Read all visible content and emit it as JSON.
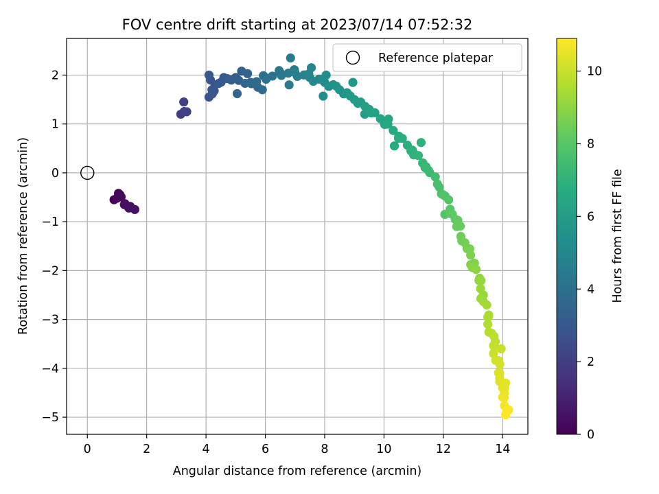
{
  "chart_data": {
    "type": "scatter",
    "title": "FOV centre drift starting at 2023/07/14 07:52:32",
    "xlabel": "Angular distance from reference (arcmin)",
    "ylabel": "Rotation from reference (arcmin)",
    "xlim": [
      -0.7,
      14.85
    ],
    "ylim": [
      -5.35,
      2.75
    ],
    "xticks": [
      0,
      2,
      4,
      6,
      8,
      10,
      12,
      14
    ],
    "yticks": [
      -5,
      -4,
      -3,
      -2,
      -1,
      0,
      1,
      2
    ],
    "xtick_labels": [
      "0",
      "2",
      "4",
      "6",
      "8",
      "10",
      "12",
      "14"
    ],
    "ytick_labels": [
      "−5",
      "−4",
      "−3",
      "−2",
      "−1",
      "0",
      "1",
      "2"
    ],
    "grid": true,
    "legend": {
      "position": "upper right",
      "entries": [
        "Reference platepar"
      ]
    },
    "reference_point": {
      "x": 0,
      "y": 0
    },
    "colorbar": {
      "label": "Hours from first FF file",
      "colormap": "viridis",
      "range": [
        0,
        10.9
      ],
      "ticks": [
        0,
        2,
        4,
        6,
        8,
        10
      ],
      "tick_labels": [
        "0",
        "2",
        "4",
        "6",
        "8",
        "10"
      ]
    },
    "anchors": [
      [
        1.0,
        -0.52,
        0.2
      ],
      [
        1.1,
        -0.45,
        0.2
      ],
      [
        1.25,
        -0.65,
        0.35
      ],
      [
        1.4,
        -0.72,
        0.45
      ],
      [
        1.6,
        -0.75,
        0.5
      ],
      [
        3.15,
        1.2,
        2.0
      ],
      [
        3.35,
        1.25,
        2.1
      ],
      [
        4.1,
        1.55,
        2.8
      ],
      [
        4.3,
        1.8,
        3.0
      ],
      [
        4.6,
        1.95,
        3.1
      ],
      [
        5.0,
        1.95,
        3.3
      ],
      [
        5.5,
        1.85,
        3.6
      ],
      [
        6.0,
        1.95,
        4.0
      ],
      [
        6.5,
        2.05,
        4.3
      ],
      [
        7.0,
        2.05,
        4.6
      ],
      [
        7.5,
        1.95,
        5.0
      ],
      [
        8.0,
        1.85,
        5.3
      ],
      [
        8.5,
        1.7,
        5.6
      ],
      [
        9.0,
        1.5,
        5.9
      ],
      [
        9.5,
        1.3,
        6.2
      ],
      [
        10.0,
        1.05,
        6.4
      ],
      [
        10.5,
        0.75,
        6.7
      ],
      [
        11.0,
        0.4,
        7.0
      ],
      [
        11.5,
        0.05,
        7.3
      ],
      [
        12.0,
        -0.45,
        7.8
      ],
      [
        12.4,
        -0.95,
        8.2
      ],
      [
        12.8,
        -1.55,
        8.6
      ],
      [
        13.2,
        -2.2,
        9.1
      ],
      [
        13.5,
        -2.95,
        9.5
      ],
      [
        13.7,
        -3.55,
        9.9
      ],
      [
        13.9,
        -4.1,
        10.3
      ],
      [
        14.05,
        -4.6,
        10.6
      ],
      [
        14.1,
        -4.95,
        10.9
      ]
    ],
    "extra_points": [
      [
        0.9,
        -0.55,
        0.1
      ],
      [
        1.05,
        -0.42,
        0.15
      ],
      [
        1.35,
        -0.68,
        0.3
      ],
      [
        3.25,
        1.45,
        2.0
      ],
      [
        4.1,
        2.0,
        2.9
      ],
      [
        4.2,
        1.7,
        3.0
      ],
      [
        4.15,
        1.9,
        2.95
      ],
      [
        5.2,
        2.08,
        3.4
      ],
      [
        5.05,
        1.62,
        3.5
      ],
      [
        5.4,
        2.03,
        3.5
      ],
      [
        5.75,
        1.75,
        3.7
      ],
      [
        5.9,
        1.7,
        3.8
      ],
      [
        6.85,
        2.35,
        4.5
      ],
      [
        6.8,
        1.8,
        4.5
      ],
      [
        7.55,
        2.15,
        4.9
      ],
      [
        8.05,
        2.0,
        5.3
      ],
      [
        7.95,
        1.57,
        5.3
      ],
      [
        8.95,
        1.85,
        5.8
      ],
      [
        9.35,
        1.2,
        6.0
      ],
      [
        10.15,
        1.1,
        6.4
      ],
      [
        10.35,
        0.55,
        6.6
      ],
      [
        11.25,
        0.62,
        7.0
      ],
      [
        11.3,
        0.2,
        7.2
      ],
      [
        11.8,
        -0.23,
        7.6
      ],
      [
        12.05,
        -0.85,
        7.9
      ],
      [
        12.45,
        -1.1,
        8.3
      ],
      [
        13.05,
        -1.85,
        8.8
      ],
      [
        13.35,
        -2.5,
        9.2
      ],
      [
        13.75,
        -3.45,
        9.8
      ],
      [
        13.95,
        -3.6,
        10.0
      ],
      [
        13.9,
        -4.2,
        10.3
      ],
      [
        14.1,
        -4.3,
        10.5
      ],
      [
        14.2,
        -4.85,
        10.8
      ]
    ]
  }
}
